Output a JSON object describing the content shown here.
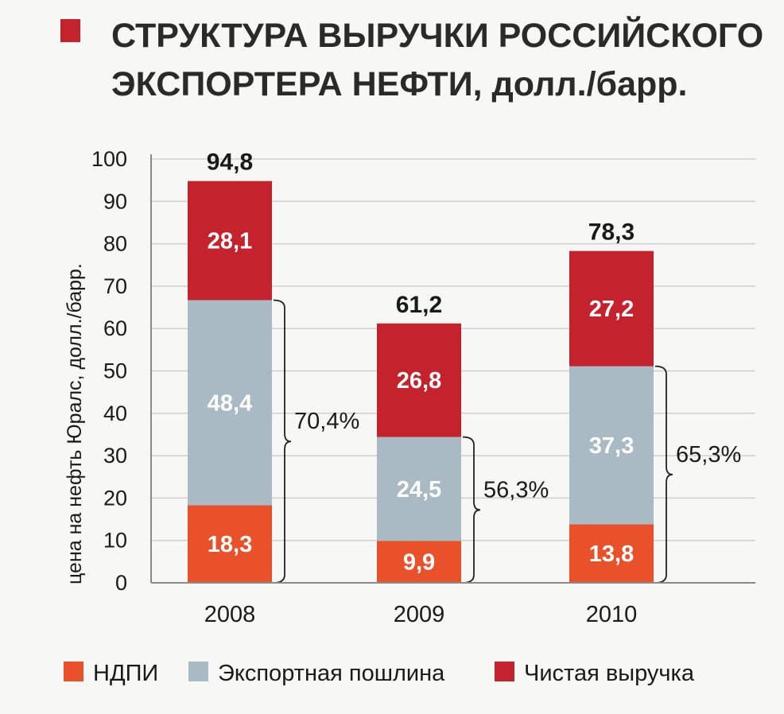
{
  "chart_data": {
    "type": "bar",
    "stacked": true,
    "title": "СТРУКТУРА ВЫРУЧКИ РОССИЙСКОГО ЭКСПОРТЕРА НЕФТИ, долл./барр.",
    "title_line1": "СТРУКТУРА ВЫРУЧКИ РОССИЙСКОГО",
    "title_line2": "ЭКСПОРТЕРА НЕФТИ, долл./барр.",
    "xlabel": "",
    "ylabel": "цена на нефть Юралс, долл./барр.",
    "ylim": [
      0,
      100
    ],
    "yticks": [
      "0",
      "10",
      "20",
      "30",
      "40",
      "50",
      "60",
      "70",
      "80",
      "90",
      "100"
    ],
    "grid": true,
    "legend_position": "bottom",
    "categories": [
      "2008",
      "2009",
      "2010"
    ],
    "series": [
      {
        "name": "НДПИ",
        "color": "#e8512a",
        "values": [
          18.3,
          9.9,
          13.8
        ],
        "labels": [
          "18,3",
          "9,9",
          "13,8"
        ]
      },
      {
        "name": "Экспортная пошлина",
        "color": "#a9bac5",
        "values": [
          48.4,
          24.5,
          37.3
        ],
        "labels": [
          "48,4",
          "24,5",
          "37,3"
        ]
      },
      {
        "name": "Чистая выручка",
        "color": "#c4222c",
        "values": [
          28.1,
          26.8,
          27.2
        ],
        "labels": [
          "28,1",
          "26,8",
          "27,2"
        ]
      }
    ],
    "totals": [
      94.8,
      61.2,
      78.3
    ],
    "total_labels": [
      "94,8",
      "61,2",
      "78,3"
    ],
    "bracket_labels": [
      "70,4%",
      "56,3%",
      "65,3%"
    ]
  }
}
